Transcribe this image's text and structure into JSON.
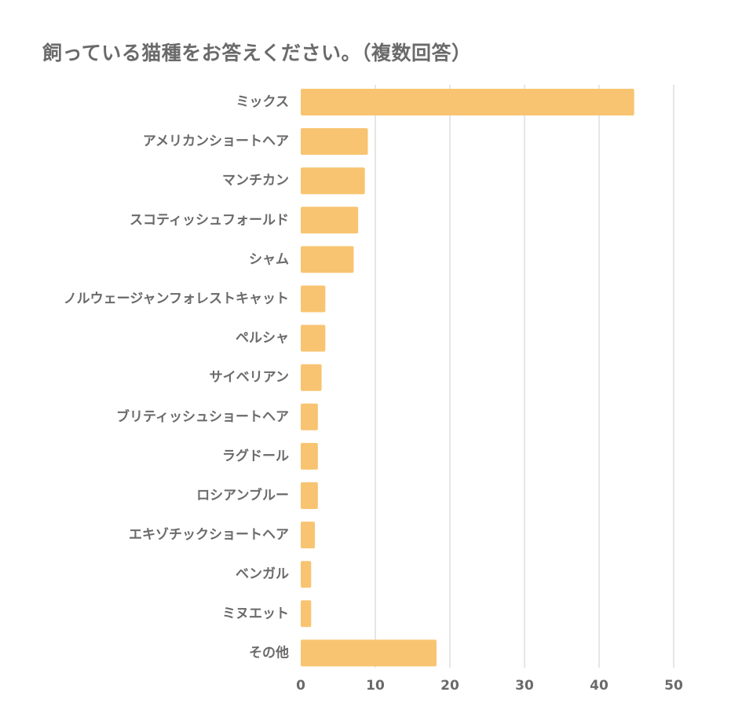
{
  "chart_data": {
    "type": "bar",
    "orientation": "horizontal",
    "title": "飼っている猫種をお答えください。（複数回答）",
    "categories": [
      "ミックス",
      "アメリカンショートヘア",
      "マンチカン",
      "スコティッシュフォールド",
      "シャム",
      "ノルウェージャンフォレストキャット",
      "ペルシャ",
      "サイベリアン",
      "ブリティッシュショートヘア",
      "ラグドール",
      "ロシアンブルー",
      "エキゾチックショートヘア",
      "ベンガル",
      "ミヌエット",
      "その他"
    ],
    "values": [
      44.7,
      9.0,
      8.6,
      7.7,
      7.1,
      3.3,
      3.3,
      2.8,
      2.3,
      2.3,
      2.3,
      1.9,
      1.4,
      1.4,
      18.2
    ],
    "xlim": [
      0,
      50
    ],
    "xticks": [
      "0",
      "10",
      "20",
      "30",
      "40",
      "50"
    ],
    "grid": true,
    "bar_color": "#f8c471",
    "grid_color": "#e6e6e6",
    "text_color": "#6a6a6a"
  }
}
